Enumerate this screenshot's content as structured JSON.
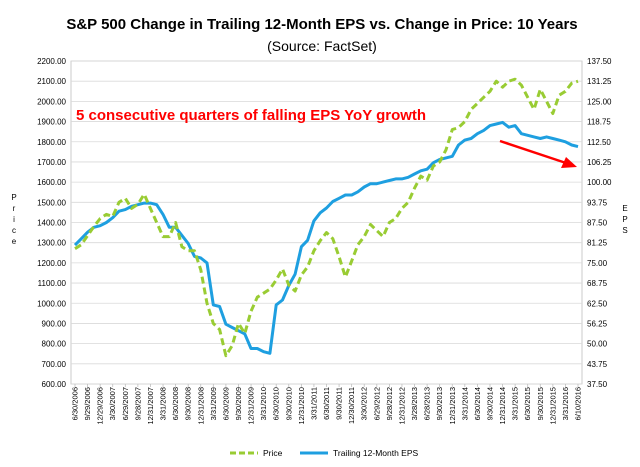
{
  "chart_data": {
    "type": "line",
    "title": "S&P 500 Change in Trailing 12-Month EPS vs. Change in Price: 10 Years",
    "subtitle": "(Source: FactSet)",
    "ylabel": "Price",
    "y2label": "EPS",
    "ylim": [
      600,
      2200
    ],
    "y2lim": [
      37.5,
      137.5
    ],
    "y_ticks": [
      "600.00",
      "700.00",
      "800.00",
      "900.00",
      "1000.00",
      "1100.00",
      "1200.00",
      "1300.00",
      "1400.00",
      "1500.00",
      "1600.00",
      "1700.00",
      "1800.00",
      "1900.00",
      "2000.00",
      "2100.00",
      "2200.00"
    ],
    "y2_ticks": [
      "37.50",
      "43.75",
      "50.00",
      "56.25",
      "62.50",
      "68.75",
      "75.00",
      "81.25",
      "87.50",
      "93.75",
      "100.00",
      "106.25",
      "112.50",
      "118.75",
      "125.00",
      "131.25",
      "137.50"
    ],
    "x_ticks": [
      "6/30/2006",
      "9/29/2006",
      "12/29/2006",
      "3/30/2007",
      "6/29/2007",
      "9/28/2007",
      "12/31/2007",
      "3/31/2008",
      "6/30/2008",
      "9/30/2008",
      "12/31/2008",
      "3/31/2009",
      "6/30/2009",
      "9/30/2009",
      "12/31/2009",
      "3/31/2010",
      "6/30/2010",
      "9/30/2010",
      "12/31/2010",
      "3/31/2011",
      "6/30/2011",
      "9/30/2011",
      "12/30/2011",
      "3/30/2012",
      "6/29/2012",
      "9/28/2012",
      "12/31/2012",
      "3/28/2013",
      "6/28/2013",
      "9/30/2013",
      "12/31/2013",
      "3/31/2014",
      "6/30/2014",
      "9/30/2014",
      "12/31/2014",
      "3/31/2015",
      "6/30/2015",
      "9/30/2015",
      "12/31/2015",
      "3/31/2016",
      "6/10/2016"
    ],
    "series": [
      {
        "name": "Price",
        "axis": "left",
        "color": "#99cc33",
        "style": "dashed",
        "x": [
          0,
          0.5,
          1,
          1.5,
          2,
          2.5,
          3,
          3.5,
          4,
          4.5,
          5,
          5.5,
          6,
          6.5,
          7,
          7.5,
          8,
          8.5,
          9,
          9.5,
          10,
          10.5,
          11,
          11.5,
          12,
          12.5,
          13,
          13.5,
          14,
          14.5,
          15,
          15.5,
          16,
          16.5,
          17,
          17.5,
          18,
          18.5,
          19,
          19.5,
          20,
          20.5,
          21,
          21.5,
          22,
          22.5,
          23,
          23.5,
          24,
          24.5,
          25,
          25.5,
          26,
          26.5,
          27,
          27.5,
          28,
          28.5,
          29,
          29.5,
          30,
          30.5,
          31,
          31.5,
          32,
          32.5,
          33,
          33.5,
          34,
          34.5,
          35,
          35.5,
          36,
          36.5,
          37,
          37.5,
          38,
          38.5,
          39,
          39.5,
          40
        ],
        "values": [
          1270,
          1290,
          1335,
          1380,
          1420,
          1440,
          1430,
          1500,
          1520,
          1470,
          1490,
          1540,
          1470,
          1400,
          1330,
          1330,
          1400,
          1280,
          1260,
          1260,
          1165,
          1000,
          900,
          870,
          740,
          790,
          900,
          850,
          960,
          1030,
          1050,
          1070,
          1115,
          1170,
          1090,
          1060,
          1140,
          1180,
          1260,
          1310,
          1350,
          1320,
          1230,
          1130,
          1210,
          1290,
          1330,
          1390,
          1360,
          1330,
          1400,
          1420,
          1470,
          1500,
          1570,
          1630,
          1610,
          1680,
          1700,
          1760,
          1860,
          1870,
          1900,
          1960,
          1990,
          2020,
          2050,
          2100,
          2070,
          2100,
          2110,
          2080,
          2020,
          1960,
          2060,
          2000,
          1940,
          2030,
          2050,
          2090,
          2100
        ]
      },
      {
        "name": "Trailing 12-Month EPS",
        "axis": "right",
        "color": "#1e9fe0",
        "style": "solid",
        "x": [
          0,
          0.5,
          1,
          1.5,
          2,
          2.5,
          3,
          3.5,
          4,
          4.5,
          5,
          5.5,
          6,
          6.5,
          7,
          7.5,
          8,
          8.5,
          9,
          9.5,
          10,
          10.5,
          11,
          11.5,
          12,
          12.5,
          13,
          13.5,
          14,
          14.5,
          15,
          15.5,
          16,
          16.5,
          17,
          17.5,
          18,
          18.5,
          19,
          19.5,
          20,
          20.5,
          21,
          21.5,
          22,
          22.5,
          23,
          23.5,
          24,
          24.5,
          25,
          25.5,
          26,
          26.5,
          27,
          27.5,
          28,
          28.5,
          29,
          29.5,
          30,
          30.5,
          31,
          31.5,
          32,
          32.5,
          33,
          33.5,
          34,
          34.5,
          35,
          35.5,
          36,
          36.5,
          37,
          37.5,
          38,
          38.5,
          39,
          39.5,
          40
        ],
        "values": [
          80.5,
          82.5,
          84.5,
          86.0,
          86.5,
          87.5,
          89.0,
          91.0,
          91.5,
          92.5,
          93.0,
          93.5,
          93.5,
          93.0,
          90.0,
          86.0,
          86.0,
          83.5,
          81.0,
          77.0,
          76.5,
          75.0,
          62.0,
          61.5,
          56.0,
          55.0,
          54.0,
          53.0,
          48.5,
          48.5,
          47.5,
          47.0,
          62.0,
          63.5,
          68.0,
          71.5,
          80.0,
          82.0,
          88.0,
          90.5,
          92.0,
          94.0,
          95.0,
          96.0,
          96.0,
          97.0,
          98.5,
          99.5,
          99.5,
          100.0,
          100.5,
          101.0,
          101.0,
          101.5,
          102.5,
          103.5,
          104.0,
          106.0,
          107.0,
          107.5,
          108.0,
          111.5,
          113.0,
          113.5,
          115.0,
          116.0,
          117.5,
          118.0,
          118.5,
          117.0,
          117.5,
          115.0,
          114.5,
          114.0,
          113.5,
          114.0,
          113.5,
          113.0,
          112.5,
          111.5,
          111.0
        ]
      }
    ],
    "annotations": [
      {
        "text": "5 consecutive quarters of falling EPS YoY growth",
        "color": "#ff0000"
      }
    ],
    "legend": {
      "position": "bottom"
    },
    "grid": true
  }
}
